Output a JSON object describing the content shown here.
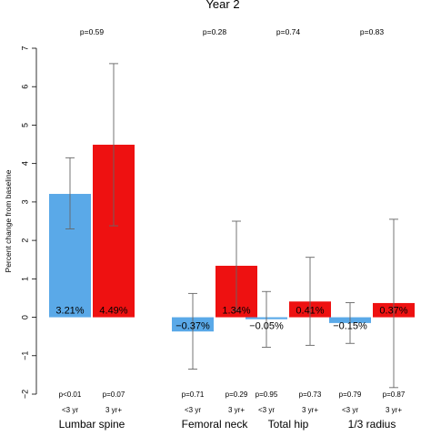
{
  "chart_data": {
    "type": "bar",
    "title": "Year 2",
    "ylabel": "Percent change from baseline",
    "xlabel": "",
    "ylim": [
      -2,
      7
    ],
    "yticks": [
      -2,
      -1,
      0,
      1,
      2,
      3,
      4,
      5,
      6,
      7
    ],
    "series_colors": {
      "<3 yr": "#5aa9e8",
      "3 yr+": "#ee1111"
    },
    "grid": false,
    "groups": [
      {
        "name": "Lumbar spine",
        "p_between": "p=0.59",
        "bars": [
          {
            "category": "<3 yr",
            "value": 3.21,
            "label": "3.21%",
            "err_low": 2.3,
            "err_high": 4.15,
            "p": "p<0.01"
          },
          {
            "category": "3 yr+",
            "value": 4.49,
            "label": "4.49%",
            "err_low": 2.38,
            "err_high": 6.6,
            "p": "p=0.07"
          }
        ]
      },
      {
        "name": "Femoral neck",
        "p_between": "p=0.28",
        "bars": [
          {
            "category": "<3 yr",
            "value": -0.37,
            "label": "−0.37%",
            "err_low": -1.35,
            "err_high": 0.62,
            "p": "p=0.71"
          },
          {
            "category": "3 yr+",
            "value": 1.34,
            "label": "1.34%",
            "err_low": 0.18,
            "err_high": 2.5,
            "p": "p=0.29"
          }
        ]
      },
      {
        "name": "Total hip",
        "p_between": "p=0.74",
        "bars": [
          {
            "category": "<3 yr",
            "value": -0.05,
            "label": "−0.05%",
            "err_low": -0.78,
            "err_high": 0.67,
            "p": "p=0.95"
          },
          {
            "category": "3 yr+",
            "value": 0.41,
            "label": "0.41%",
            "err_low": -0.73,
            "err_high": 1.56,
            "p": "p=0.73"
          }
        ]
      },
      {
        "name": "1/3 radius",
        "p_between": "p=0.83",
        "bars": [
          {
            "category": "<3 yr",
            "value": -0.15,
            "label": "−0.15%",
            "err_low": -0.68,
            "err_high": 0.38,
            "p": "p=0.79"
          },
          {
            "category": "3 yr+",
            "value": 0.37,
            "label": "0.37%",
            "err_low": -1.83,
            "err_high": 2.55,
            "p": "p=0.87"
          }
        ]
      }
    ]
  }
}
